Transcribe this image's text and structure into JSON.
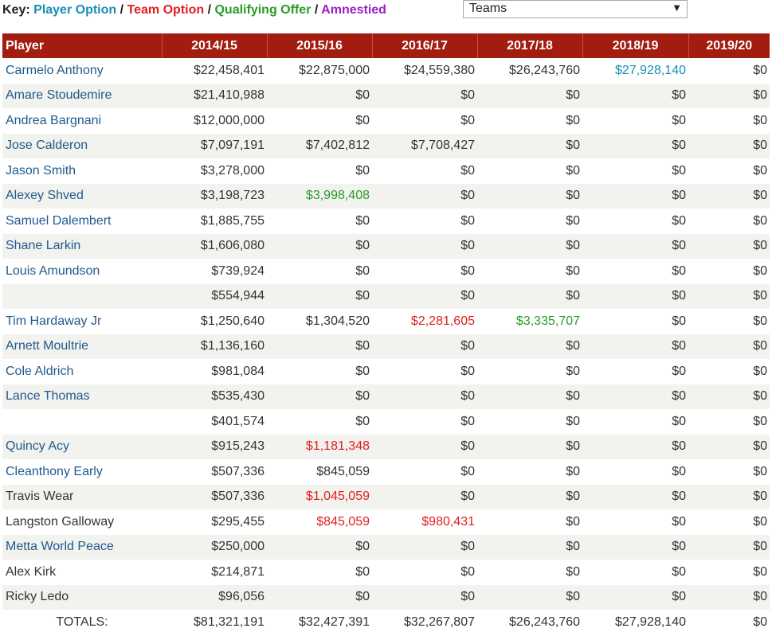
{
  "key": {
    "label": "Key:",
    "separator": "/",
    "items": [
      {
        "label": "Player Option",
        "color": "#1a8db5"
      },
      {
        "label": "Team Option",
        "color": "#e02020"
      },
      {
        "label": "Qualifying Offer",
        "color": "#2a9a2a"
      },
      {
        "label": "Amnestied",
        "color": "#9b1fc2"
      }
    ]
  },
  "team_select": {
    "value": "Teams"
  },
  "table": {
    "header_color": "#a21c0f",
    "columns": [
      "Player",
      "2014/15",
      "2015/16",
      "2016/17",
      "2017/18",
      "2018/19",
      "2019/20"
    ],
    "rows": [
      {
        "player": "Carmelo Anthony",
        "link": true,
        "cells": [
          {
            "v": "$22,458,401"
          },
          {
            "v": "$22,875,000"
          },
          {
            "v": "$24,559,380"
          },
          {
            "v": "$26,243,760"
          },
          {
            "v": "$27,928,140",
            "s": "po"
          },
          {
            "v": "$0"
          }
        ]
      },
      {
        "player": "Amare Stoudemire",
        "link": true,
        "cells": [
          {
            "v": "$21,410,988"
          },
          {
            "v": "$0"
          },
          {
            "v": "$0"
          },
          {
            "v": "$0"
          },
          {
            "v": "$0"
          },
          {
            "v": "$0"
          }
        ]
      },
      {
        "player": "Andrea Bargnani",
        "link": true,
        "cells": [
          {
            "v": "$12,000,000"
          },
          {
            "v": "$0"
          },
          {
            "v": "$0"
          },
          {
            "v": "$0"
          },
          {
            "v": "$0"
          },
          {
            "v": "$0"
          }
        ]
      },
      {
        "player": "Jose Calderon",
        "link": true,
        "cells": [
          {
            "v": "$7,097,191"
          },
          {
            "v": "$7,402,812"
          },
          {
            "v": "$7,708,427"
          },
          {
            "v": "$0"
          },
          {
            "v": "$0"
          },
          {
            "v": "$0"
          }
        ]
      },
      {
        "player": "Jason Smith",
        "link": true,
        "cells": [
          {
            "v": "$3,278,000"
          },
          {
            "v": "$0"
          },
          {
            "v": "$0"
          },
          {
            "v": "$0"
          },
          {
            "v": "$0"
          },
          {
            "v": "$0"
          }
        ]
      },
      {
        "player": "Alexey Shved",
        "link": true,
        "cells": [
          {
            "v": "$3,198,723"
          },
          {
            "v": "$3,998,408",
            "s": "qo"
          },
          {
            "v": "$0"
          },
          {
            "v": "$0"
          },
          {
            "v": "$0"
          },
          {
            "v": "$0"
          }
        ]
      },
      {
        "player": "Samuel Dalembert",
        "link": true,
        "cells": [
          {
            "v": "$1,885,755"
          },
          {
            "v": "$0"
          },
          {
            "v": "$0"
          },
          {
            "v": "$0"
          },
          {
            "v": "$0"
          },
          {
            "v": "$0"
          }
        ]
      },
      {
        "player": "Shane Larkin",
        "link": true,
        "cells": [
          {
            "v": "$1,606,080"
          },
          {
            "v": "$0"
          },
          {
            "v": "$0"
          },
          {
            "v": "$0"
          },
          {
            "v": "$0"
          },
          {
            "v": "$0"
          }
        ]
      },
      {
        "player": "Louis Amundson",
        "link": true,
        "cells": [
          {
            "v": "$739,924"
          },
          {
            "v": "$0"
          },
          {
            "v": "$0"
          },
          {
            "v": "$0"
          },
          {
            "v": "$0"
          },
          {
            "v": "$0"
          }
        ]
      },
      {
        "player": "",
        "link": false,
        "cells": [
          {
            "v": "$554,944"
          },
          {
            "v": "$0"
          },
          {
            "v": "$0"
          },
          {
            "v": "$0"
          },
          {
            "v": "$0"
          },
          {
            "v": "$0"
          }
        ]
      },
      {
        "player": "Tim Hardaway Jr",
        "link": true,
        "cells": [
          {
            "v": "$1,250,640"
          },
          {
            "v": "$1,304,520"
          },
          {
            "v": "$2,281,605",
            "s": "to"
          },
          {
            "v": "$3,335,707",
            "s": "qo"
          },
          {
            "v": "$0"
          },
          {
            "v": "$0"
          }
        ]
      },
      {
        "player": "Arnett Moultrie",
        "link": true,
        "cells": [
          {
            "v": "$1,136,160"
          },
          {
            "v": "$0"
          },
          {
            "v": "$0"
          },
          {
            "v": "$0"
          },
          {
            "v": "$0"
          },
          {
            "v": "$0"
          }
        ]
      },
      {
        "player": "Cole Aldrich",
        "link": true,
        "cells": [
          {
            "v": "$981,084"
          },
          {
            "v": "$0"
          },
          {
            "v": "$0"
          },
          {
            "v": "$0"
          },
          {
            "v": "$0"
          },
          {
            "v": "$0"
          }
        ]
      },
      {
        "player": "Lance Thomas",
        "link": true,
        "cells": [
          {
            "v": "$535,430"
          },
          {
            "v": "$0"
          },
          {
            "v": "$0"
          },
          {
            "v": "$0"
          },
          {
            "v": "$0"
          },
          {
            "v": "$0"
          }
        ]
      },
      {
        "player": "",
        "link": false,
        "cells": [
          {
            "v": "$401,574"
          },
          {
            "v": "$0"
          },
          {
            "v": "$0"
          },
          {
            "v": "$0"
          },
          {
            "v": "$0"
          },
          {
            "v": "$0"
          }
        ]
      },
      {
        "player": "Quincy Acy",
        "link": true,
        "cells": [
          {
            "v": "$915,243"
          },
          {
            "v": "$1,181,348",
            "s": "to"
          },
          {
            "v": "$0"
          },
          {
            "v": "$0"
          },
          {
            "v": "$0"
          },
          {
            "v": "$0"
          }
        ]
      },
      {
        "player": "Cleanthony Early",
        "link": true,
        "cells": [
          {
            "v": "$507,336"
          },
          {
            "v": "$845,059"
          },
          {
            "v": "$0"
          },
          {
            "v": "$0"
          },
          {
            "v": "$0"
          },
          {
            "v": "$0"
          }
        ]
      },
      {
        "player": "Travis Wear",
        "link": false,
        "cells": [
          {
            "v": "$507,336"
          },
          {
            "v": "$1,045,059",
            "s": "to"
          },
          {
            "v": "$0"
          },
          {
            "v": "$0"
          },
          {
            "v": "$0"
          },
          {
            "v": "$0"
          }
        ]
      },
      {
        "player": "Langston Galloway",
        "link": false,
        "cells": [
          {
            "v": "$295,455"
          },
          {
            "v": "$845,059",
            "s": "to"
          },
          {
            "v": "$980,431",
            "s": "to"
          },
          {
            "v": "$0"
          },
          {
            "v": "$0"
          },
          {
            "v": "$0"
          }
        ]
      },
      {
        "player": "Metta World Peace",
        "link": true,
        "cells": [
          {
            "v": "$250,000"
          },
          {
            "v": "$0"
          },
          {
            "v": "$0"
          },
          {
            "v": "$0"
          },
          {
            "v": "$0"
          },
          {
            "v": "$0"
          }
        ]
      },
      {
        "player": "Alex Kirk",
        "link": false,
        "cells": [
          {
            "v": "$214,871"
          },
          {
            "v": "$0"
          },
          {
            "v": "$0"
          },
          {
            "v": "$0"
          },
          {
            "v": "$0"
          },
          {
            "v": "$0"
          }
        ]
      },
      {
        "player": "Ricky Ledo",
        "link": false,
        "cells": [
          {
            "v": "$96,056"
          },
          {
            "v": "$0"
          },
          {
            "v": "$0"
          },
          {
            "v": "$0"
          },
          {
            "v": "$0"
          },
          {
            "v": "$0"
          }
        ]
      }
    ],
    "totals": {
      "label": "TOTALS:",
      "values": [
        "$81,321,191",
        "$32,427,391",
        "$32,267,807",
        "$26,243,760",
        "$27,928,140",
        "$0"
      ]
    }
  }
}
